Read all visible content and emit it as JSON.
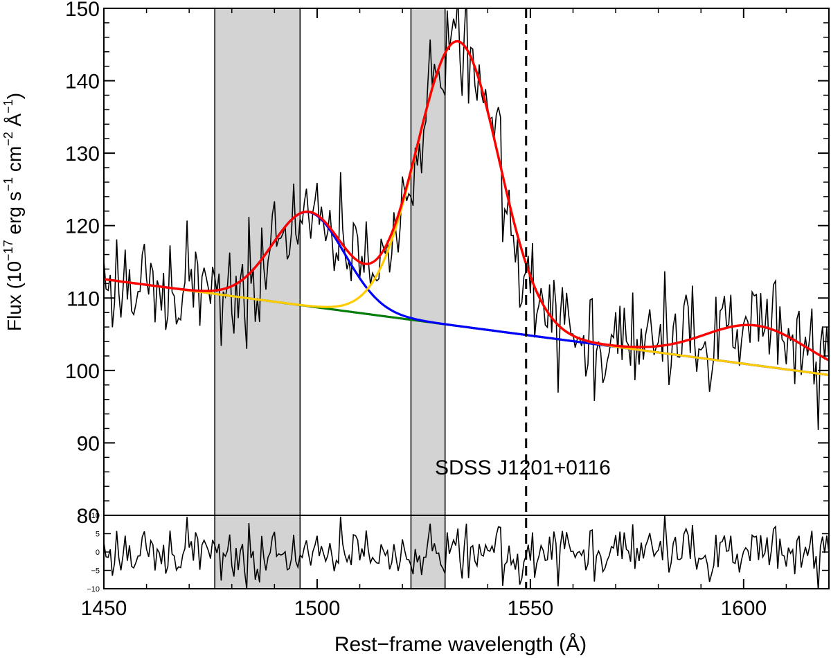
{
  "chart_data": {
    "type": "line",
    "object_label": "SDSS J1201+0116",
    "xlabel": "Rest−frame wavelength (Å)",
    "ylabel": {
      "prefix": "Flux (10",
      "exp1": "−17",
      "mid1": " erg s",
      "exp2": "−1",
      "mid2": " cm",
      "exp3": "−2",
      "mid3": " Å",
      "exp4": "−1",
      "suffix": ")"
    },
    "xlim": [
      1450,
      1620
    ],
    "main_panel": {
      "ylim": [
        80,
        150
      ],
      "yticks": [
        80,
        90,
        100,
        110,
        120,
        130,
        140,
        150
      ],
      "ytick_labels": [
        "80",
        "90",
        "100",
        "110",
        "120",
        "130",
        "140",
        "150"
      ]
    },
    "residual_panel": {
      "ylim": [
        -10,
        10
      ],
      "yticks": [
        -10,
        -5,
        0,
        5,
        10
      ],
      "ytick_labels": [
        "−10",
        "−5",
        "0",
        "5",
        "10"
      ]
    },
    "xticks": [
      1450,
      1500,
      1550,
      1600
    ],
    "xtick_labels": [
      "1450",
      "1500",
      "1550",
      "1600"
    ],
    "masked_regions": [
      [
        1476,
        1496
      ],
      [
        1522,
        1530
      ]
    ],
    "reference_line": {
      "x": 1549,
      "style": "dashed"
    },
    "continuum": {
      "x0": 1450,
      "y0": 112.6,
      "slope": -0.0778
    },
    "components": [
      {
        "name": "narrow/blue component",
        "color": "#0000ff",
        "center": 1498,
        "amp": 13.0,
        "sigma": 8.5
      },
      {
        "name": "main/yellow component",
        "color": "#ffcc00",
        "center": 1533,
        "amp": 39.3,
        "sigma": 9.6
      },
      {
        "name": "bump",
        "color": "#008000",
        "center": 1603,
        "amp": 5.5,
        "sigma": 12.0
      }
    ],
    "total_fit_color": "#ff0000",
    "continuum_color": "#3a2a9a",
    "data_color": "#000000",
    "noise": {
      "sigma": 3.6,
      "seed": 17,
      "step": 0.5
    }
  }
}
